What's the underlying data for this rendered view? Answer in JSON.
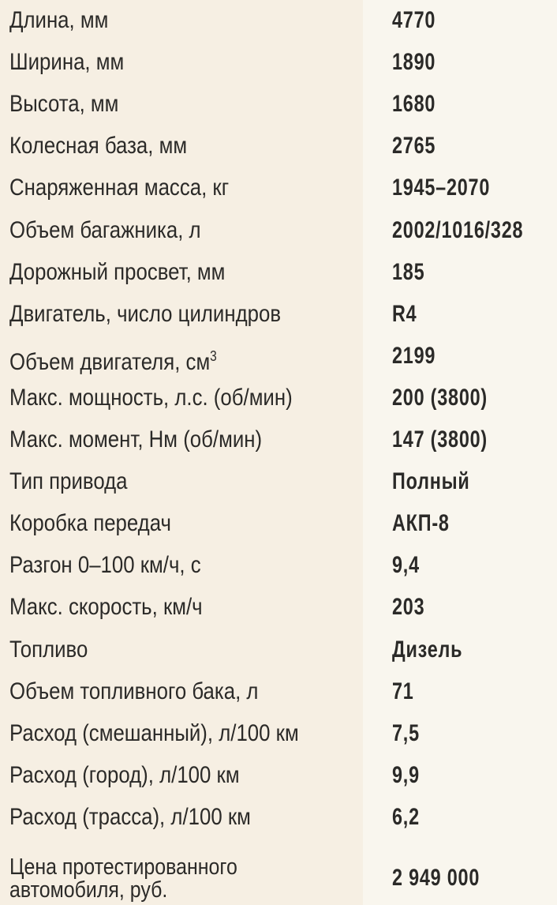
{
  "specs": [
    {
      "label": "Длина, мм",
      "value": "4770"
    },
    {
      "label": "Ширина, мм",
      "value": "1890"
    },
    {
      "label": "Высота, мм",
      "value": "1680"
    },
    {
      "label": "Колесная база, мм",
      "value": "2765"
    },
    {
      "label": "Снаряженная масса, кг",
      "value": "1945–2070"
    },
    {
      "label": "Объем багажника, л",
      "value": "2002/1016/328"
    },
    {
      "label": "Дорожный просвет, мм",
      "value": "185"
    },
    {
      "label": "Двигатель, число цилиндров",
      "value": "R4"
    },
    {
      "label": "Объем двигателя, см",
      "label_sup": "3",
      "value": "2199"
    },
    {
      "label": "Макс. мощность, л.с. (об/мин)",
      "value": "200 (3800)"
    },
    {
      "label": "Макс. момент, Нм (об/мин)",
      "value": "147 (3800)"
    },
    {
      "label": "Тип привода",
      "value": "Полный"
    },
    {
      "label": "Коробка передач",
      "value": "АКП-8"
    },
    {
      "label": "Разгон 0–100 км/ч, с",
      "value": "9,4"
    },
    {
      "label": "Макс. скорость, км/ч",
      "value": "203"
    },
    {
      "label": "Топливо",
      "value": "Дизель"
    },
    {
      "label": "Объем топливного бака, л",
      "value": "71"
    },
    {
      "label": "Расход (смешанный), л/100 км",
      "value": "7,5"
    },
    {
      "label": "Расход (город), л/100 км",
      "value": "9,9"
    },
    {
      "label": "Расход (трасса), л/100 км",
      "value": "6,2"
    },
    {
      "label": "Цена протестированного",
      "label_line2": "автомобиля, руб.",
      "value": "2 949 000"
    }
  ]
}
